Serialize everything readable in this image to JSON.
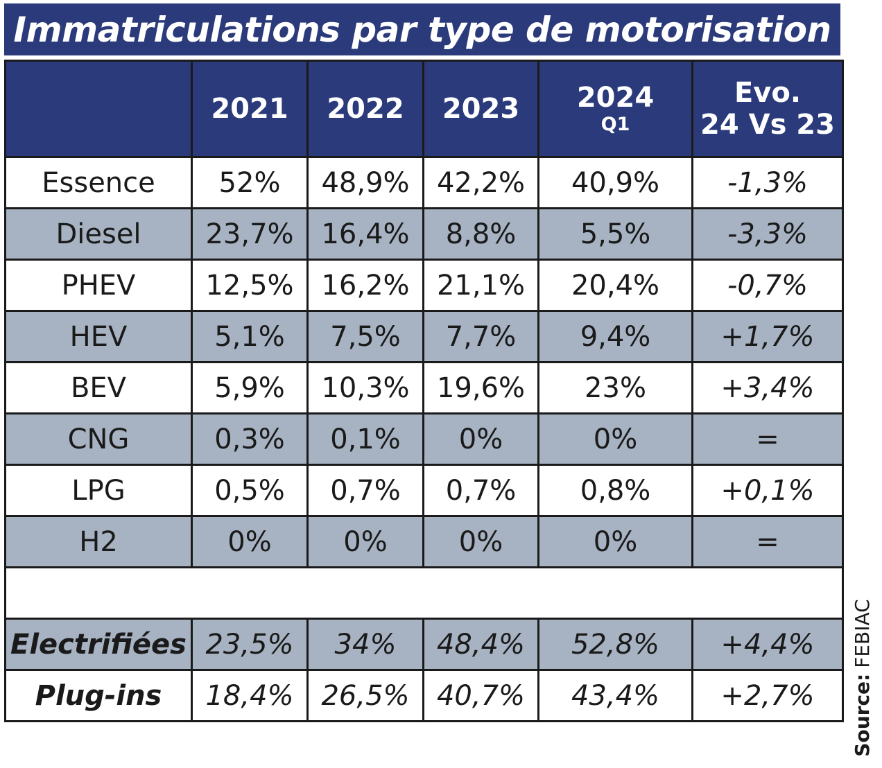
{
  "colors": {
    "header_bg": "#2b3a7a",
    "row_grey": "#a7b3c2",
    "row_white": "#ffffff",
    "border": "#1a1a1a"
  },
  "chart_data": {
    "type": "table",
    "title": "Immatriculations par type de motorisation",
    "columns": [
      {
        "main": "",
        "sub": ""
      },
      {
        "main": "2021",
        "sub": ""
      },
      {
        "main": "2022",
        "sub": ""
      },
      {
        "main": "2023",
        "sub": ""
      },
      {
        "main": "2024",
        "sub": "Q1"
      },
      {
        "main": "Evo.",
        "sub": "24 Vs 23"
      }
    ],
    "rows": [
      {
        "label": "Essence",
        "values": [
          "52%",
          "48,9%",
          "42,2%",
          "40,9%"
        ],
        "evo": "-1,3%"
      },
      {
        "label": "Diesel",
        "values": [
          "23,7%",
          "16,4%",
          "8,8%",
          "5,5%"
        ],
        "evo": "-3,3%"
      },
      {
        "label": "PHEV",
        "values": [
          "12,5%",
          "16,2%",
          "21,1%",
          "20,4%"
        ],
        "evo": "-0,7%"
      },
      {
        "label": "HEV",
        "values": [
          "5,1%",
          "7,5%",
          "7,7%",
          "9,4%"
        ],
        "evo": "+1,7%"
      },
      {
        "label": "BEV",
        "values": [
          "5,9%",
          "10,3%",
          "19,6%",
          "23%"
        ],
        "evo": "+3,4%"
      },
      {
        "label": "CNG",
        "values": [
          "0,3%",
          "0,1%",
          "0%",
          "0%"
        ],
        "evo": "="
      },
      {
        "label": "LPG",
        "values": [
          "0,5%",
          "0,7%",
          "0,7%",
          "0,8%"
        ],
        "evo": "+0,1%"
      },
      {
        "label": "H2",
        "values": [
          "0%",
          "0%",
          "0%",
          "0%"
        ],
        "evo": "="
      }
    ],
    "summary_rows": [
      {
        "label": "Electrifiées",
        "values": [
          "23,5%",
          "34%",
          "48,4%",
          "52,8%"
        ],
        "evo": "+4,4%"
      },
      {
        "label": "Plug-ins",
        "values": [
          "18,4%",
          "26,5%",
          "40,7%",
          "43,4%"
        ],
        "evo": "+2,7%"
      }
    ],
    "source_label": "Source:",
    "source_value": "FEBIAC"
  }
}
